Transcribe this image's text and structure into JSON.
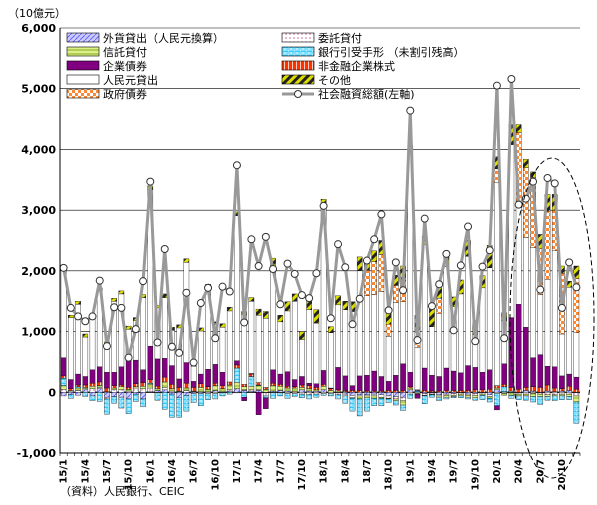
{
  "chart_data": {
    "type": "bar",
    "stacked": true,
    "unit_label": "（10億元）",
    "source_note": "（資料）人民銀行、CEIC",
    "ylim": [
      -1000,
      6000
    ],
    "yticks": [
      "-1,000",
      "0",
      "1,000",
      "2,000",
      "3,000",
      "4,000",
      "5,000",
      "6,000"
    ],
    "ytick_values": [
      -1000,
      0,
      1000,
      2000,
      3000,
      4000,
      5000,
      6000
    ],
    "grid": true,
    "legend_position": "top-left",
    "x": [
      "15/1",
      "15/2",
      "15/3",
      "15/4",
      "15/5",
      "15/6",
      "15/7",
      "15/8",
      "15/9",
      "15/10",
      "15/11",
      "15/12",
      "16/1",
      "16/2",
      "16/3",
      "16/4",
      "16/5",
      "16/6",
      "16/7",
      "16/8",
      "16/9",
      "16/10",
      "16/11",
      "16/12",
      "17/1",
      "17/2",
      "17/3",
      "17/4",
      "17/5",
      "17/6",
      "17/7",
      "17/8",
      "17/9",
      "17/10",
      "17/11",
      "17/12",
      "18/1",
      "18/2",
      "18/3",
      "18/4",
      "18/5",
      "18/6",
      "18/7",
      "18/8",
      "18/9",
      "18/10",
      "18/11",
      "18/12",
      "19/1",
      "19/2",
      "19/3",
      "19/4",
      "19/5",
      "19/6",
      "19/7",
      "19/8",
      "19/9",
      "19/10",
      "19/11",
      "19/12",
      "20/1",
      "20/2",
      "20/3",
      "20/4",
      "20/5",
      "20/6",
      "20/7",
      "20/8",
      "20/9",
      "20/10",
      "20/11",
      "20/12"
    ],
    "xtick_labels": [
      "15/1",
      "15/4",
      "15/7",
      "15/10",
      "16/1",
      "16/4",
      "16/7",
      "16/10",
      "17/1",
      "17/4",
      "17/7",
      "17/10",
      "18/1",
      "18/4",
      "18/7",
      "18/10",
      "19/1",
      "19/4",
      "19/7",
      "19/10",
      "20/1",
      "20/4",
      "20/7",
      "20/10"
    ],
    "series": [
      {
        "name": "外貨貸出（人民元換算）",
        "color": "#9999ff",
        "pattern": "diag-blue",
        "values": [
          -60,
          -40,
          -50,
          40,
          -60,
          60,
          -80,
          -70,
          -80,
          -110,
          -30,
          -110,
          10,
          30,
          40,
          -30,
          -90,
          -50,
          -20,
          -20,
          10,
          30,
          -10,
          20,
          60,
          30,
          20,
          30,
          -10,
          20,
          30,
          20,
          10,
          40,
          20,
          20,
          40,
          0,
          -10,
          -30,
          -50,
          -40,
          -40,
          -30,
          -40,
          -60,
          -70,
          -80,
          40,
          10,
          -20,
          -10,
          -40,
          -30,
          -20,
          -10,
          -30,
          -20,
          -10,
          -40,
          40,
          10,
          20,
          -10,
          30,
          20,
          -10,
          20,
          10,
          20,
          30,
          -10
        ]
      },
      {
        "name": "委託貸付",
        "color": "#ffffff",
        "pattern": "dots-pink",
        "values": [
          50,
          20,
          30,
          20,
          60,
          20,
          -30,
          40,
          40,
          20,
          70,
          60,
          60,
          -10,
          40,
          20,
          10,
          30,
          10,
          10,
          -20,
          -20,
          10,
          20,
          -10,
          10,
          20,
          10,
          -50,
          -10,
          -10,
          -20,
          -20,
          -30,
          -40,
          -30,
          -20,
          -20,
          -30,
          -30,
          -40,
          -20,
          -20,
          -30,
          -40,
          -40,
          -40,
          -60,
          -30,
          -20,
          -30,
          -20,
          -20,
          -20,
          -30,
          -20,
          -20,
          -30,
          -20,
          -30,
          -20,
          -20,
          -10,
          -20,
          -30,
          -20,
          -20,
          -40,
          -40,
          -30,
          -30,
          -50
        ]
      },
      {
        "name": "信託貸付",
        "color": "#ccee66",
        "pattern": "hatch-green",
        "values": [
          60,
          10,
          40,
          20,
          40,
          30,
          10,
          30,
          50,
          30,
          20,
          40,
          60,
          30,
          90,
          40,
          10,
          40,
          10,
          70,
          40,
          80,
          50,
          80,
          100,
          50,
          60,
          70,
          50,
          90,
          70,
          50,
          60,
          40,
          40,
          20,
          60,
          30,
          20,
          10,
          -10,
          -50,
          -30,
          -40,
          -20,
          -10,
          -30,
          -70,
          30,
          -10,
          -10,
          -10,
          -20,
          -30,
          -20,
          -30,
          -30,
          -40,
          -20,
          -30,
          30,
          -30,
          -40,
          -30,
          -30,
          -50,
          -40,
          -30,
          -20,
          -30,
          -40,
          -100
        ]
      },
      {
        "name": "銀行引受手形（未割引残高）",
        "color": "#33ccff",
        "pattern": "bricks-cyan",
        "values": [
          120,
          -60,
          20,
          -70,
          -80,
          -150,
          -250,
          -110,
          -180,
          -240,
          -120,
          -130,
          20,
          -120,
          -280,
          -380,
          -320,
          -260,
          -150,
          -200,
          -100,
          -90,
          -50,
          -30,
          240,
          -80,
          160,
          10,
          -30,
          -90,
          -50,
          -80,
          -50,
          -60,
          -70,
          -50,
          -30,
          -40,
          -70,
          -120,
          -210,
          -280,
          -220,
          -120,
          -120,
          -60,
          -70,
          -90,
          -70,
          20,
          -130,
          -40,
          -60,
          -30,
          -20,
          -30,
          -30,
          -40,
          -70,
          -60,
          -200,
          80,
          -50,
          -60,
          -70,
          -90,
          -130,
          -60,
          -80,
          -60,
          -50,
          -350
        ]
      },
      {
        "name": "非金融企業株式",
        "color": "#ff3300",
        "pattern": "stripes-red",
        "values": [
          40,
          30,
          30,
          40,
          50,
          60,
          60,
          40,
          30,
          30,
          50,
          60,
          60,
          40,
          80,
          70,
          60,
          80,
          60,
          60,
          40,
          40,
          50,
          50,
          50,
          40,
          40,
          40,
          30,
          40,
          30,
          30,
          20,
          40,
          50,
          40,
          30,
          30,
          20,
          20,
          30,
          30,
          20,
          20,
          20,
          30,
          30,
          30,
          20,
          10,
          30,
          20,
          20,
          30,
          30,
          30,
          30,
          40,
          40,
          50,
          40,
          40,
          60,
          50,
          50,
          70,
          80,
          100,
          60,
          40,
          70,
          50
        ]
      },
      {
        "name": "企業債券",
        "color": "#800080",
        "pattern": "solid",
        "values": [
          300,
          150,
          180,
          140,
          220,
          250,
          260,
          220,
          300,
          450,
          390,
          210,
          550,
          450,
          310,
          310,
          140,
          340,
          100,
          160,
          290,
          310,
          220,
          0,
          70,
          -60,
          10,
          -370,
          -180,
          220,
          170,
          240,
          120,
          140,
          40,
          60,
          230,
          10,
          370,
          240,
          80,
          240,
          260,
          330,
          240,
          150,
          250,
          440,
          240,
          -70,
          370,
          260,
          240,
          370,
          320,
          290,
          410,
          370,
          290,
          320,
          -70,
          340,
          1150,
          1400,
          990,
          480,
          540,
          310,
          350,
          210,
          200,
          200
        ]
      },
      {
        "name": "人民元貸出",
        "color": "#ffffff",
        "pattern": "white",
        "values": [
          1450,
          1020,
          1150,
          650,
          840,
          1250,
          450,
          1170,
          1200,
          510,
          650,
          1190,
          2580,
          840,
          1000,
          580,
          840,
          1650,
          250,
          710,
          1340,
          650,
          740,
          1170,
          2390,
          1150,
          1190,
          1110,
          1140,
          1670,
          860,
          1000,
          1290,
          610,
          1210,
          1000,
          2690,
          910,
          1030,
          1090,
          1220,
          1730,
          1310,
          1260,
          1400,
          740,
          1200,
          1020,
          3620,
          700,
          2030,
          800,
          1040,
          1670,
          1060,
          1300,
          1800,
          540,
          1390,
          1680,
          3340,
          710,
          2850,
          1700,
          1480,
          1810,
          990,
          1430,
          1910,
          690,
          1430,
          730
        ]
      },
      {
        "name": "政府債券",
        "color": "#ff8833",
        "pattern": "checker-orange",
        "values": [
          0,
          0,
          0,
          0,
          0,
          0,
          0,
          0,
          0,
          0,
          0,
          0,
          0,
          0,
          0,
          0,
          0,
          0,
          0,
          0,
          0,
          0,
          0,
          0,
          0,
          0,
          0,
          0,
          0,
          0,
          0,
          0,
          0,
          0,
          0,
          0,
          0,
          0,
          0,
          0,
          0,
          0,
          420,
          540,
          610,
          200,
          280,
          350,
          0,
          300,
          0,
          0,
          250,
          0,
          0,
          0,
          0,
          0,
          0,
          0,
          230,
          0,
          0,
          1130,
          1150,
          1160,
          760,
          1120,
          670,
          1000,
          0,
          900
        ]
      },
      {
        "name": "その他",
        "color": "#cccc00",
        "pattern": "stripes-yellow",
        "values": [
          60,
          40,
          50,
          50,
          50,
          50,
          50,
          50,
          50,
          50,
          50,
          50,
          60,
          40,
          60,
          50,
          50,
          60,
          50,
          50,
          60,
          50,
          60,
          60,
          60,
          50,
          60,
          100,
          110,
          170,
          110,
          150,
          120,
          130,
          140,
          220,
          130,
          100,
          150,
          140,
          160,
          230,
          190,
          180,
          230,
          200,
          170,
          240,
          110,
          230,
          140,
          320,
          210,
          220,
          160,
          230,
          260,
          230,
          200,
          370,
          200,
          130,
          330,
          130,
          140,
          90,
          230,
          280,
          260,
          120,
          100,
          200
        ]
      }
    ],
    "total_series": {
      "name": "社会融資総額（左軸）",
      "color": "#999999",
      "values": [
        2050,
        1390,
        1250,
        1170,
        1250,
        1840,
        760,
        1400,
        1390,
        570,
        1040,
        1830,
        3470,
        820,
        2360,
        750,
        650,
        1640,
        490,
        1470,
        1720,
        890,
        1740,
        1660,
        3740,
        1150,
        2520,
        2080,
        2560,
        2030,
        1450,
        2120,
        1950,
        1600,
        1550,
        1960,
        3070,
        1220,
        2440,
        2060,
        1120,
        1540,
        2170,
        2520,
        2930,
        1350,
        2140,
        1680,
        4640,
        860,
        2860,
        1420,
        1780,
        2280,
        1020,
        2090,
        2730,
        840,
        2070,
        2340,
        5050,
        890,
        5160,
        3090,
        3190,
        3470,
        1690,
        3530,
        3440,
        1390,
        2140,
        1730
      ]
    },
    "legend_labels": {
      "s0": "外貨貸出（人民元換算）",
      "s1": "委託貸付",
      "s2": "信託貸付",
      "s3": "銀行引受手形 （未割引残高）",
      "s4": "企業債券",
      "s5": "非金融企業株式",
      "s6": "人民元貸出",
      "s7": "その他",
      "s8": "政府債券",
      "s9": "社会融資総額(左軸)"
    }
  }
}
